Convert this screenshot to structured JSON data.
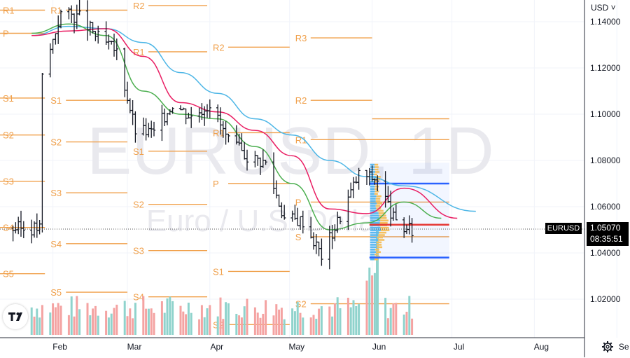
{
  "header": {
    "currency": "USD ˅"
  },
  "watermark": {
    "symbol": "EURUSD, 1D",
    "description": "Euro / U.S. Dollar"
  },
  "price_tag": {
    "symbol": "EURUSD",
    "price": "1.05070",
    "countdown": "08:35:51"
  },
  "icons": {
    "settings": "gear-icon",
    "logo": "tradingview-logo-icon",
    "currency_chevron": "chevron-down-icon"
  },
  "colors": {
    "up": "#26a69a",
    "down": "#ef5350",
    "pivot": "#f0a04b",
    "sma_short": "#4caf50",
    "sma_mid": "#e91e63",
    "sma_long": "#4db6e6",
    "profile_up": "#5bb8f0",
    "profile_down": "#f5c060",
    "profile_line": "#2962ff",
    "poc": "#e53935"
  },
  "chart_data": {
    "type": "ohlc",
    "title": "EURUSD, 1D",
    "subtitle": "Euro / U.S. Dollar",
    "currency": "USD",
    "ylim": [
      1.005,
      1.15
    ],
    "yticks": [
      "1.14000",
      "1.12000",
      "1.10000",
      "1.08000",
      "1.06000",
      "1.04000",
      "1.02000"
    ],
    "xticks": [
      "Feb",
      "Mar",
      "Apr",
      "May",
      "Jun",
      "Jul",
      "Aug",
      "Se"
    ],
    "last_price": 1.0507,
    "series_price": [
      [
        "2022-01-28",
        1.116
      ],
      [
        "2022-02-04",
        1.144
      ],
      [
        "2022-02-11",
        1.142
      ],
      [
        "2022-02-18",
        1.133
      ],
      [
        "2022-02-25",
        1.127
      ],
      [
        "2022-03-04",
        1.093
      ],
      [
        "2022-03-11",
        1.092
      ],
      [
        "2022-03-18",
        1.105
      ],
      [
        "2022-03-25",
        1.099
      ],
      [
        "2022-04-01",
        1.105
      ],
      [
        "2022-04-08",
        1.088
      ],
      [
        "2022-04-15",
        1.082
      ],
      [
        "2022-04-22",
        1.079
      ],
      [
        "2022-04-29",
        1.055
      ],
      [
        "2022-05-06",
        1.054
      ],
      [
        "2022-05-13",
        1.039
      ],
      [
        "2022-05-20",
        1.056
      ],
      [
        "2022-05-27",
        1.074
      ],
      [
        "2022-06-03",
        1.072
      ],
      [
        "2022-06-10",
        1.052
      ],
      [
        "2022-06-17",
        1.049
      ],
      [
        "2022-06-24",
        1.055
      ],
      [
        "2022-07-01",
        1.0507
      ]
    ],
    "series_ma_green": [
      [
        "2022-01-24",
        1.135
      ],
      [
        "2022-02-07",
        1.139
      ],
      [
        "2022-02-21",
        1.134
      ],
      [
        "2022-03-07",
        1.11
      ],
      [
        "2022-03-21",
        1.1
      ],
      [
        "2022-04-04",
        1.098
      ],
      [
        "2022-04-18",
        1.086
      ],
      [
        "2022-05-02",
        1.07
      ],
      [
        "2022-05-16",
        1.05
      ],
      [
        "2022-05-30",
        1.053
      ],
      [
        "2022-06-13",
        1.062
      ],
      [
        "2022-06-27",
        1.055
      ]
    ],
    "series_ma_pink": [
      [
        "2022-01-24",
        1.134
      ],
      [
        "2022-02-07",
        1.136
      ],
      [
        "2022-02-21",
        1.137
      ],
      [
        "2022-03-07",
        1.125
      ],
      [
        "2022-03-21",
        1.105
      ],
      [
        "2022-04-04",
        1.101
      ],
      [
        "2022-04-18",
        1.093
      ],
      [
        "2022-05-02",
        1.082
      ],
      [
        "2022-05-16",
        1.059
      ],
      [
        "2022-05-30",
        1.057
      ],
      [
        "2022-06-13",
        1.068
      ],
      [
        "2022-07-03",
        1.055
      ]
    ],
    "series_ma_blue": [
      [
        "2022-01-24",
        1.134
      ],
      [
        "2022-02-07",
        1.138
      ],
      [
        "2022-02-21",
        1.137
      ],
      [
        "2022-03-07",
        1.131
      ],
      [
        "2022-03-21",
        1.118
      ],
      [
        "2022-04-04",
        1.109
      ],
      [
        "2022-04-18",
        1.098
      ],
      [
        "2022-05-02",
        1.091
      ],
      [
        "2022-05-16",
        1.08
      ],
      [
        "2022-05-30",
        1.073
      ],
      [
        "2022-06-13",
        1.069
      ],
      [
        "2022-07-10",
        1.058
      ]
    ],
    "pivots": [
      {
        "period": "Jan",
        "levels": [
          {
            "label": "R1",
            "value": 1.145
          },
          {
            "label": "P",
            "value": 1.135
          },
          {
            "label": "S1",
            "value": 1.107
          },
          {
            "label": "S2",
            "value": 1.091
          },
          {
            "label": "S3",
            "value": 1.071
          },
          {
            "label": "S4",
            "value": 1.051
          },
          {
            "label": "S5",
            "value": 1.031
          }
        ]
      },
      {
        "period": "Feb",
        "levels": [
          {
            "label": "R1",
            "value": 1.145
          },
          {
            "label": "S1",
            "value": 1.106
          },
          {
            "label": "S2",
            "value": 1.088
          },
          {
            "label": "S3",
            "value": 1.066
          },
          {
            "label": "S4",
            "value": 1.044
          },
          {
            "label": "S5",
            "value": 1.023
          }
        ]
      },
      {
        "period": "Mar",
        "levels": [
          {
            "label": "R2",
            "value": 1.147
          },
          {
            "label": "R1",
            "value": 1.127
          },
          {
            "label": "S1",
            "value": 1.084
          },
          {
            "label": "S2",
            "value": 1.061
          },
          {
            "label": "S3",
            "value": 1.041
          },
          {
            "label": "S4",
            "value": 1.021
          }
        ]
      },
      {
        "period": "Apr",
        "levels": [
          {
            "label": "R2",
            "value": 1.129
          },
          {
            "label": "R1",
            "value": 1.092
          },
          {
            "label": "P",
            "value": 1.07
          },
          {
            "label": "S1",
            "value": 1.032
          },
          {
            "label": "S2",
            "value": 1.009
          }
        ]
      },
      {
        "period": "May",
        "levels": [
          {
            "label": "R3",
            "value": 1.133
          },
          {
            "label": "R2",
            "value": 1.106
          },
          {
            "label": "R1",
            "value": 1.089
          },
          {
            "label": "P",
            "value": 1.062
          },
          {
            "label": "S",
            "value": 1.047
          },
          {
            "label": "S2",
            "value": 1.018
          }
        ]
      }
    ],
    "volume_profile": {
      "price_high": 1.079,
      "price_low": 1.037,
      "value_area_high": 1.07,
      "value_area_low": 1.038,
      "poc": 1.0522
    },
    "legend": "none",
    "grid": true
  }
}
